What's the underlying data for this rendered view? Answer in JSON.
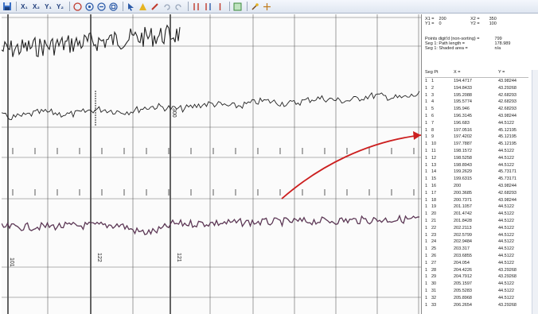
{
  "toolbar": {
    "buttons": [
      {
        "name": "save-icon"
      },
      {
        "label": "X₁"
      },
      {
        "label": "X₂"
      },
      {
        "label": "Y₁"
      },
      {
        "label": "Y₂"
      }
    ],
    "colors": {
      "accent": "#c0392b",
      "blue": "#1f3d7a"
    }
  },
  "calibration": {
    "x1_label": "X1 =",
    "x1_value": "200",
    "x2_label": "X2 =",
    "x2_value": "350",
    "y1_label": "Y1 =",
    "y1_value": "0",
    "y2_label": "Y2 =",
    "y2_value": "100"
  },
  "stats": {
    "points_label": "Points digit'd (non-sorting) =",
    "points_value": "799",
    "path_label": "Seg 1: Path length =",
    "path_value": "178.989",
    "area_label": "Seg 1: Shaded area =",
    "area_value": "n/a"
  },
  "table": {
    "headers": {
      "seg": "Seg Pt",
      "x": "X =",
      "y": "Y ="
    },
    "rows": [
      {
        "seg": "1",
        "n": "1",
        "x": "194.4717",
        "y": "43.98244"
      },
      {
        "seg": "1",
        "n": "2",
        "x": "194.8433",
        "y": "43.29268"
      },
      {
        "seg": "1",
        "n": "3",
        "x": "195.2088",
        "y": "42.68293"
      },
      {
        "seg": "1",
        "n": "4",
        "x": "195.5774",
        "y": "42.68293"
      },
      {
        "seg": "1",
        "n": "5",
        "x": "195.946",
        "y": "42.68293"
      },
      {
        "seg": "1",
        "n": "6",
        "x": "196.3145",
        "y": "43.98244"
      },
      {
        "seg": "1",
        "n": "7",
        "x": "196.683",
        "y": "44.5122"
      },
      {
        "seg": "1",
        "n": "8",
        "x": "197.0516",
        "y": "45.12195"
      },
      {
        "seg": "1",
        "n": "9",
        "x": "197.4202",
        "y": "45.12195"
      },
      {
        "seg": "1",
        "n": "10",
        "x": "197.7887",
        "y": "45.12195"
      },
      {
        "seg": "1",
        "n": "11",
        "x": "198.1572",
        "y": "44.5122"
      },
      {
        "seg": "1",
        "n": "12",
        "x": "198.5258",
        "y": "44.5122"
      },
      {
        "seg": "1",
        "n": "13",
        "x": "198.8943",
        "y": "44.5122"
      },
      {
        "seg": "1",
        "n": "14",
        "x": "199.2629",
        "y": "45.73171"
      },
      {
        "seg": "1",
        "n": "15",
        "x": "199.6315",
        "y": "45.73171"
      },
      {
        "seg": "1",
        "n": "16",
        "x": "200",
        "y": "43.98244"
      },
      {
        "seg": "1",
        "n": "17",
        "x": "200.3685",
        "y": "42.68293"
      },
      {
        "seg": "1",
        "n": "18",
        "x": "200.7371",
        "y": "43.98244"
      },
      {
        "seg": "1",
        "n": "19",
        "x": "201.1057",
        "y": "44.5122"
      },
      {
        "seg": "1",
        "n": "20",
        "x": "201.4742",
        "y": "44.5122"
      },
      {
        "seg": "1",
        "n": "21",
        "x": "201.8428",
        "y": "44.5122"
      },
      {
        "seg": "1",
        "n": "22",
        "x": "202.2113",
        "y": "44.5122"
      },
      {
        "seg": "1",
        "n": "23",
        "x": "202.5799",
        "y": "44.5122"
      },
      {
        "seg": "1",
        "n": "24",
        "x": "202.9484",
        "y": "44.5122"
      },
      {
        "seg": "1",
        "n": "25",
        "x": "203.317",
        "y": "44.5122"
      },
      {
        "seg": "1",
        "n": "26",
        "x": "203.6855",
        "y": "44.5122"
      },
      {
        "seg": "1",
        "n": "27",
        "x": "204.054",
        "y": "44.5122"
      },
      {
        "seg": "1",
        "n": "28",
        "x": "204.4226",
        "y": "43.29268"
      },
      {
        "seg": "1",
        "n": "29",
        "x": "204.7912",
        "y": "43.29268"
      },
      {
        "seg": "1",
        "n": "30",
        "x": "205.1597",
        "y": "44.5122"
      },
      {
        "seg": "1",
        "n": "31",
        "x": "205.5283",
        "y": "44.5122"
      },
      {
        "seg": "1",
        "n": "32",
        "x": "205.8968",
        "y": "44.5122"
      },
      {
        "seg": "1",
        "n": "33",
        "x": "206.2654",
        "y": "43.29268"
      }
    ]
  },
  "chart_labels": {
    "depth_a": "300",
    "depth_b": "122",
    "depth_c": "121",
    "depth_d": "101"
  },
  "colors": {
    "trace": "#222222",
    "digitized": "#8a3a7a",
    "arrow": "#cc1f1f",
    "grid": "#555555"
  }
}
